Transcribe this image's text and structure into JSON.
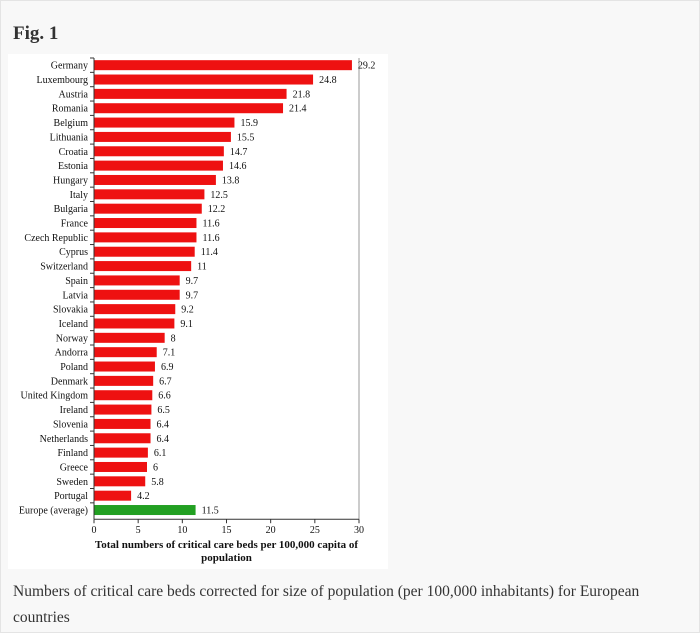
{
  "figure": {
    "label": "Fig. 1",
    "caption": "Numbers of critical care beds corrected for size of population (per 100,000 inhabitants) for European countries"
  },
  "colors": {
    "bar_default": "#ee1111",
    "bar_average": "#22a022",
    "axis": "#333333",
    "grid": "#9a9a9a"
  },
  "chart_data": {
    "type": "bar",
    "orientation": "horizontal",
    "categories": [
      "Germany",
      "Luxembourg",
      "Austria",
      "Romania",
      "Belgium",
      "Lithuania",
      "Croatia",
      "Estonia",
      "Hungary",
      "Italy",
      "Bulgaria",
      "France",
      "Czech Republic",
      "Cyprus",
      "Switzerland",
      "Spain",
      "Latvia",
      "Slovakia",
      "Iceland",
      "Norway",
      "Andorra",
      "Poland",
      "Denmark",
      "United Kingdom",
      "Ireland",
      "Slovenia",
      "Netherlands",
      "Finland",
      "Greece",
      "Sweden",
      "Portugal",
      "Europe (average)"
    ],
    "values": [
      29.2,
      24.8,
      21.8,
      21.4,
      15.9,
      15.5,
      14.7,
      14.6,
      13.8,
      12.5,
      12.2,
      11.6,
      11.6,
      11.4,
      11,
      9.7,
      9.7,
      9.2,
      9.1,
      8,
      7.1,
      6.9,
      6.7,
      6.6,
      6.5,
      6.4,
      6.4,
      6.1,
      6,
      5.8,
      4.2,
      11.5
    ],
    "value_labels": [
      "29.2",
      "24.8",
      "21.8",
      "21.4",
      "15.9",
      "15.5",
      "14.7",
      "14.6",
      "13.8",
      "12.5",
      "12.2",
      "11.6",
      "11.6",
      "11.4",
      "11",
      "9.7",
      "9.7",
      "9.2",
      "9.1",
      "8",
      "7.1",
      "6.9",
      "6.7",
      "6.6",
      "6.5",
      "6.4",
      "6.4",
      "6.1",
      "6",
      "5.8",
      "4.2",
      "11.5"
    ],
    "highlight_category": "Europe (average)",
    "xlabel": "Total numbers of critical care beds per 100,000 capita of population",
    "ylabel": "",
    "xlim": [
      0,
      30
    ],
    "xticks": [
      "0",
      "5",
      "10",
      "15",
      "20",
      "25",
      "30"
    ],
    "grid": "vertical line at 30",
    "legend": "none"
  }
}
